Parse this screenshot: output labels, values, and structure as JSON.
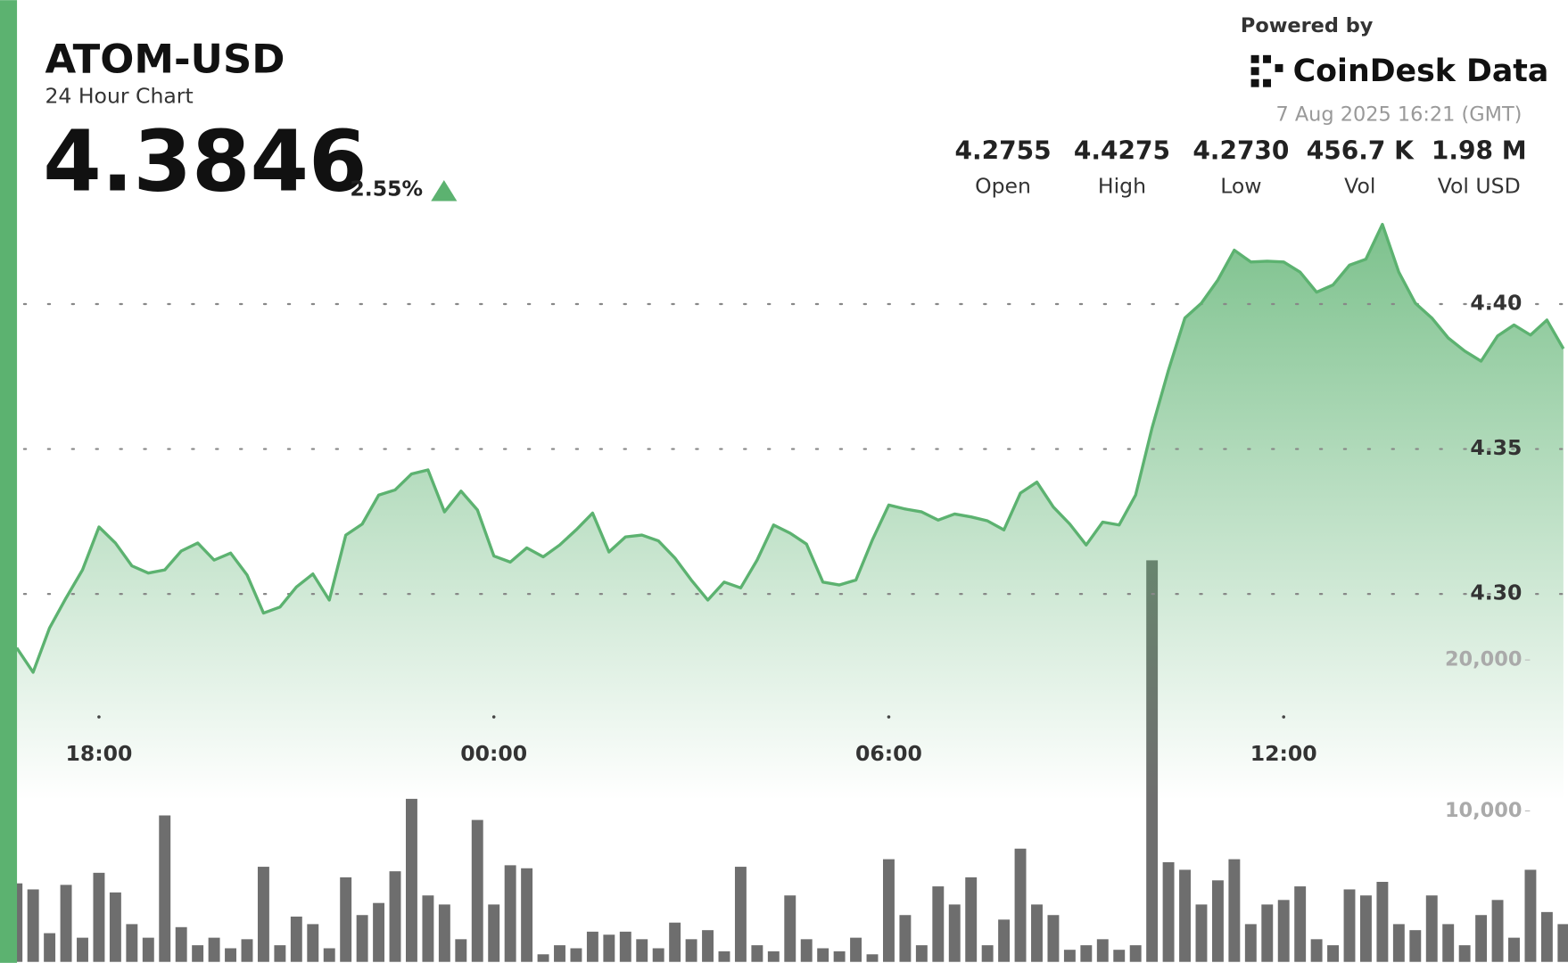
{
  "header": {
    "symbol": "ATOM-USD",
    "subtitle": "24 Hour Chart",
    "price": "4.3846",
    "change": "2.55%",
    "powered_by": "Powered by",
    "brand": "CoinDesk Data",
    "timestamp": "7 Aug 2025 16:21 (GMT)",
    "stats": [
      {
        "value": "4.2755",
        "label": "Open"
      },
      {
        "value": "4.4275",
        "label": "High"
      },
      {
        "value": "4.2730",
        "label": "Low"
      },
      {
        "value": "456.7 K",
        "label": "Vol"
      },
      {
        "value": "1.98 M",
        "label": "Vol USD"
      }
    ]
  },
  "chart_data": {
    "type": "line",
    "x": [
      16.75,
      17,
      17.25,
      17.5,
      17.75,
      18,
      18.25,
      18.5,
      18.75,
      19,
      19.25,
      19.5,
      19.75,
      20,
      20.25,
      20.5,
      20.75,
      21,
      21.25,
      21.5,
      21.75,
      22,
      22.25,
      22.5,
      22.75,
      23,
      23.25,
      23.5,
      23.75,
      24,
      24.25,
      24.5,
      24.75,
      25,
      25.25,
      25.5,
      25.75,
      26,
      26.25,
      26.5,
      26.75,
      27,
      27.25,
      27.5,
      27.75,
      28,
      28.25,
      28.5,
      28.75,
      29,
      29.25,
      29.5,
      29.75,
      30,
      30.25,
      30.5,
      30.75,
      31,
      31.25,
      31.5,
      31.75,
      32,
      32.25,
      32.5,
      32.75,
      33,
      33.25,
      33.5,
      33.75,
      34,
      34.25,
      34.5,
      34.75,
      35,
      35.25,
      35.5,
      35.75,
      36,
      36.25,
      36.5,
      36.75,
      37,
      37.25,
      37.5,
      37.75,
      38,
      38.25,
      38.5,
      38.75,
      39,
      39.25,
      39.5,
      39.75,
      40,
      40.25
    ],
    "series": [
      {
        "color": "#5cb270",
        "values": [
          4.2814,
          4.273,
          4.2883,
          4.2986,
          4.3083,
          4.3231,
          4.3176,
          4.3097,
          4.3072,
          4.3083,
          4.3148,
          4.3176,
          4.3117,
          4.3141,
          4.3066,
          4.2934,
          4.2955,
          4.3024,
          4.3069,
          4.2979,
          4.3203,
          4.3241,
          4.3341,
          4.3359,
          4.3414,
          4.3428,
          4.3283,
          4.3355,
          4.329,
          4.3131,
          4.311,
          4.3159,
          4.3128,
          4.3169,
          4.3221,
          4.3279,
          4.3145,
          4.3197,
          4.3203,
          4.3183,
          4.3124,
          4.3048,
          4.2979,
          4.3041,
          4.3021,
          4.3117,
          4.3238,
          4.321,
          4.3172,
          4.3041,
          4.3031,
          4.3048,
          4.3186,
          4.3307,
          4.3293,
          4.3283,
          4.3255,
          4.3276,
          4.3266,
          4.3252,
          4.3221,
          4.3348,
          4.3386,
          4.33,
          4.3241,
          4.3169,
          4.3248,
          4.3238,
          4.3341,
          4.3572,
          4.3772,
          4.3952,
          4.4003,
          4.4083,
          4.4186,
          4.4145,
          4.4148,
          4.4145,
          4.411,
          4.4041,
          4.4066,
          4.4134,
          4.4155,
          4.4275,
          4.411,
          4.4003,
          4.3952,
          4.3883,
          4.3838,
          4.3803,
          4.389,
          4.3928,
          4.3893,
          4.3945,
          4.3846
        ]
      },
      {
        "type": "bar",
        "axis": "y2",
        "color": "#555555",
        "values": [
          5200,
          4800,
          1900,
          5100,
          1600,
          5900,
          4600,
          2500,
          1600,
          9700,
          2300,
          1100,
          1600,
          900,
          1500,
          6300,
          1100,
          3000,
          2500,
          900,
          5600,
          3100,
          3900,
          6000,
          10800,
          4400,
          3800,
          1500,
          9400,
          3800,
          6400,
          6200,
          500,
          1100,
          900,
          2000,
          1800,
          2000,
          1500,
          900,
          2600,
          1500,
          2100,
          700,
          6300,
          1100,
          700,
          4400,
          1500,
          900,
          700,
          1600,
          500,
          6800,
          3100,
          1100,
          5000,
          3800,
          5600,
          1100,
          2800,
          7500,
          3800,
          3100,
          800,
          1100,
          1500,
          800,
          1100,
          26600,
          6600,
          6100,
          3800,
          5400,
          6800,
          2500,
          3800,
          4100,
          5000,
          1500,
          1100,
          4800,
          4400,
          5300,
          2500,
          2100,
          4400,
          2500,
          1100,
          3100,
          4100,
          1600,
          6100,
          3300,
          2500
        ]
      }
    ],
    "xlim": [
      16.77,
      40.32
    ],
    "xticks": [
      {
        "value": 18,
        "label": "18:00"
      },
      {
        "value": 24,
        "label": "00:00"
      },
      {
        "value": 30,
        "label": "06:00"
      },
      {
        "value": 36,
        "label": "12:00"
      }
    ],
    "ylim": [
      4.26,
      4.44
    ],
    "yticks": [
      {
        "value": 4.3,
        "label": "4.30"
      },
      4.35,
      {
        "value": 4.4,
        "label": "4.40"
      }
    ],
    "y2lim": [
      0,
      28000
    ],
    "y2ticks": [
      {
        "value": 10000,
        "label": "10,000"
      },
      {
        "value": 20000,
        "label": "20,000"
      }
    ],
    "grid": true
  }
}
